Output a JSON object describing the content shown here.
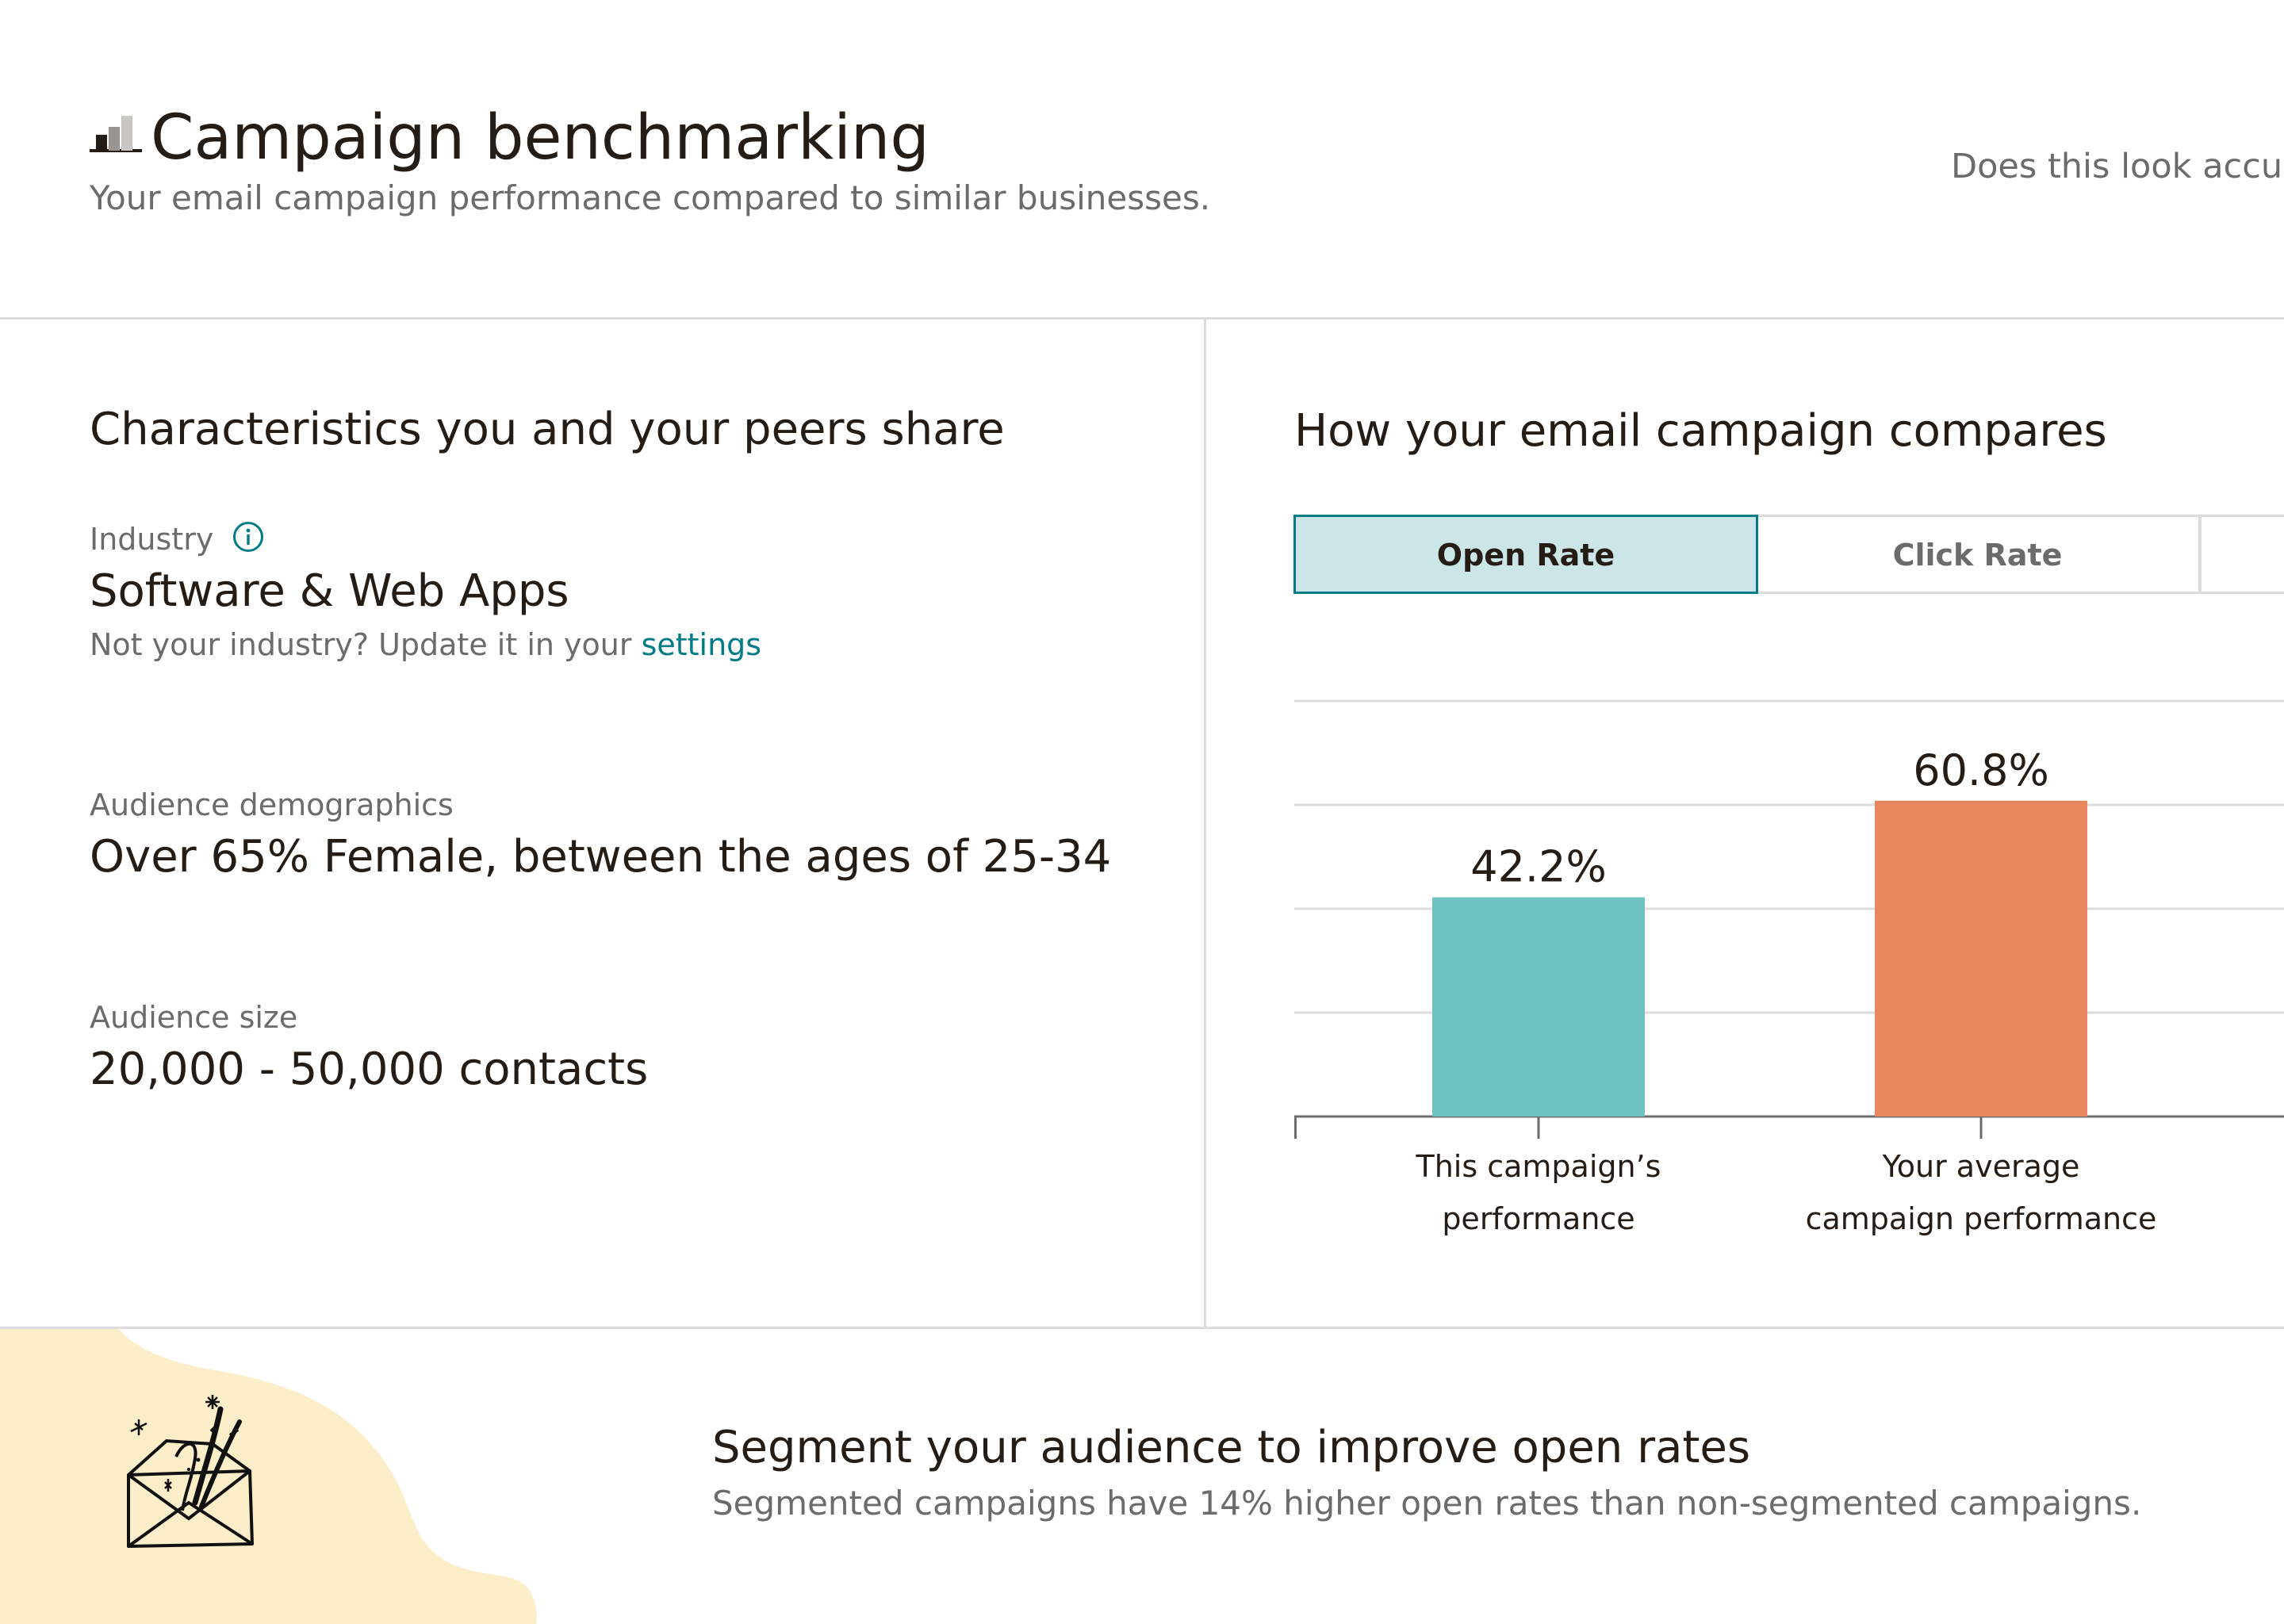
{
  "header": {
    "title": "Campaign benchmarking",
    "subtitle": "Your email campaign performance compared to similar businesses.",
    "feedback_text": "Does this look accur"
  },
  "characteristics": {
    "heading": "Characteristics you and your peers share",
    "industry": {
      "label": "Industry",
      "value": "Software & Web Apps",
      "note_prefix": "Not your industry? Update it in your ",
      "note_link": "settings"
    },
    "demographics": {
      "label": "Audience demographics",
      "value": "Over 65% Female, between the ages of 25-34"
    },
    "audience_size": {
      "label": "Audience size",
      "value": "20,000 - 50,000 contacts"
    }
  },
  "comparison": {
    "heading": "How your email campaign compares",
    "tabs": [
      {
        "label": "Open Rate",
        "selected": true
      },
      {
        "label": "Click Rate",
        "selected": false
      },
      {
        "label": "",
        "selected": false
      }
    ]
  },
  "chart_data": {
    "type": "bar",
    "categories": [
      [
        "This campaign’s",
        "performance"
      ],
      [
        "Your average",
        "campaign performance"
      ]
    ],
    "values": [
      42.2,
      60.8
    ],
    "value_labels": [
      "42.2%",
      "60.8%"
    ],
    "colors": [
      "#6dc1c0",
      "#e8865e"
    ],
    "title": "",
    "xlabel": "",
    "ylabel": "",
    "ylim": [
      0,
      80
    ],
    "grid": true
  },
  "tip": {
    "title": "Segment your audience to improve open rates",
    "body": "Segmented campaigns have 14% higher open rates than non-segmented campaigns.",
    "illustration": "envelope-illustration",
    "blob_color": "#fbeec9"
  }
}
